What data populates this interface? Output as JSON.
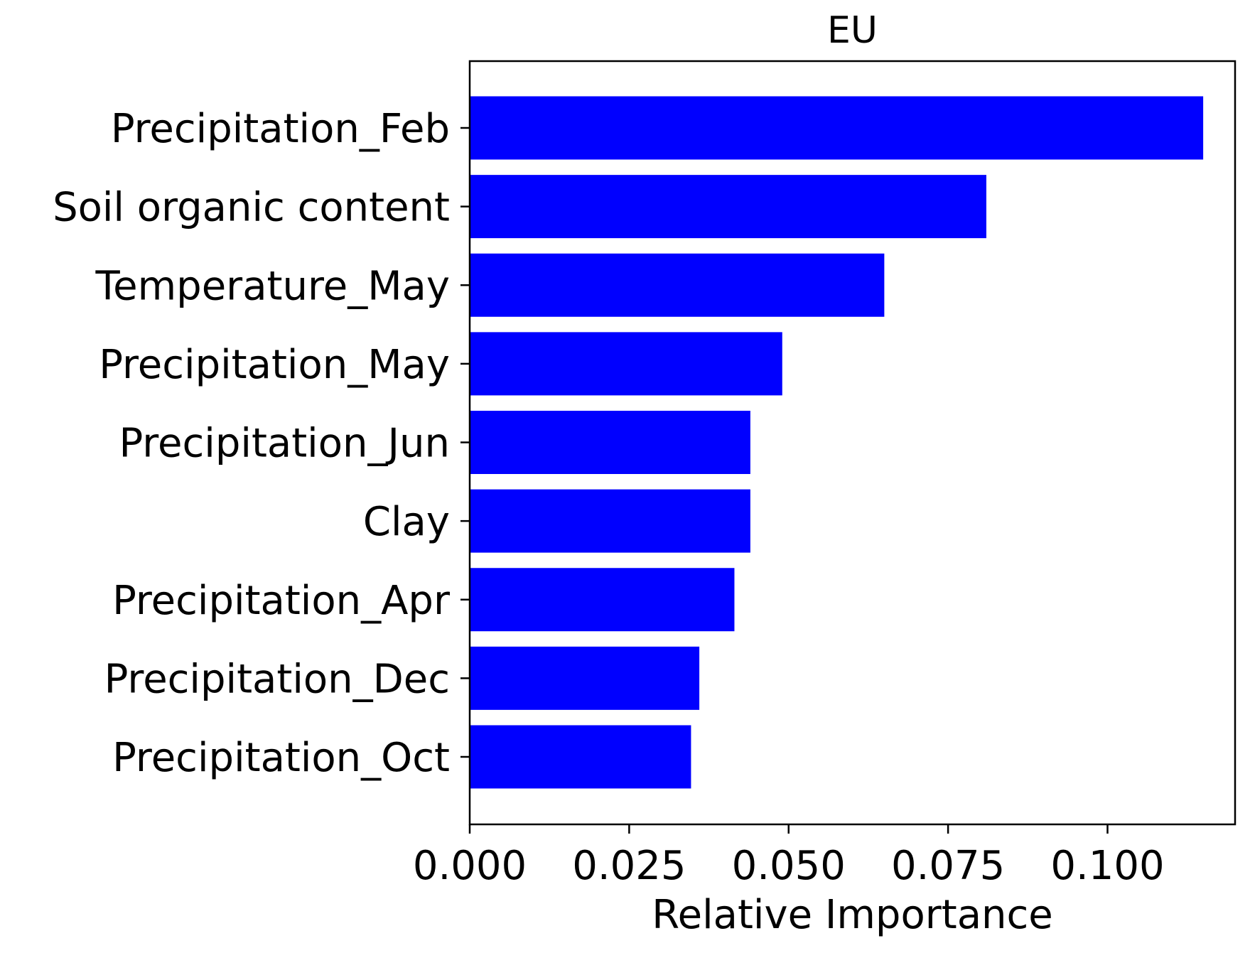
{
  "chart_data": {
    "type": "bar",
    "orientation": "horizontal",
    "title": "EU",
    "xlabel": "Relative Importance",
    "ylabel": "",
    "categories": [
      "Precipitation_Feb",
      "Soil organic content",
      "Temperature_May",
      "Precipitation_May",
      "Precipitation_Jun",
      "Clay",
      "Precipitation_Apr",
      "Precipitation_Dec",
      "Precipitation_Oct"
    ],
    "values": [
      0.115,
      0.081,
      0.065,
      0.049,
      0.044,
      0.044,
      0.0415,
      0.036,
      0.0347
    ],
    "xlim": [
      0,
      0.12
    ],
    "xticks": [
      0.0,
      0.025,
      0.05,
      0.075,
      0.1
    ],
    "xtick_labels": [
      "0.000",
      "0.025",
      "0.050",
      "0.075",
      "0.100"
    ],
    "grid": false,
    "legend": false,
    "bar_color": "#0000ff"
  }
}
